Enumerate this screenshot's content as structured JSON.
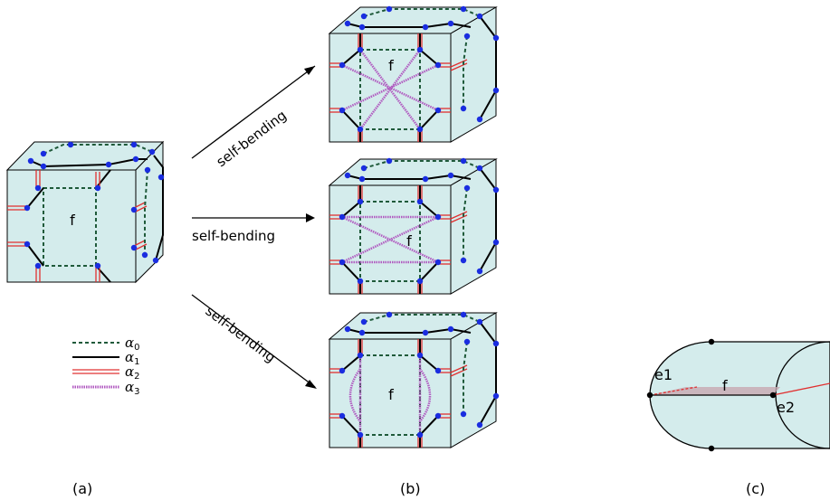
{
  "labels": {
    "panel_a": "(a)",
    "panel_b": "(b)",
    "panel_c": "(c)",
    "face": "f",
    "edge1": "e1",
    "edge2": "e2",
    "arrow": "self-bending"
  },
  "legend": [
    {
      "symbol": "α",
      "sub": "0",
      "style": "dashed"
    },
    {
      "symbol": "α",
      "sub": "1",
      "style": "solid"
    },
    {
      "symbol": "α",
      "sub": "2",
      "style": "double-red"
    },
    {
      "symbol": "α",
      "sub": "3",
      "style": "pink"
    }
  ],
  "colors": {
    "face_fill": "#d4ecec",
    "alpha0": "#1f5a3a",
    "alpha1": "#000000",
    "alpha2": "#e03030",
    "alpha3": "#b05ac0",
    "vertex": "#1a2de0",
    "band": "#c7a9b2"
  }
}
